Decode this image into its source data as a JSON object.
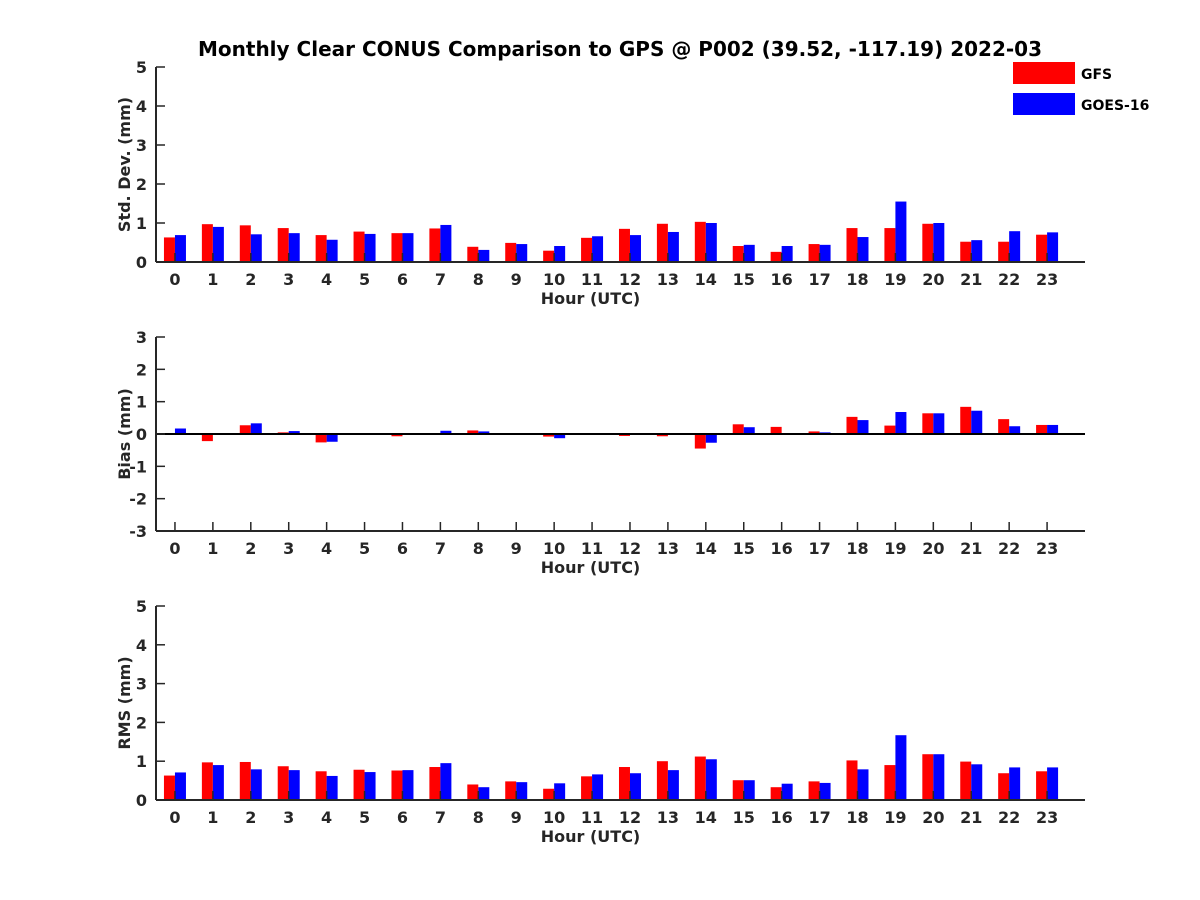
{
  "title": "Monthly Clear CONUS Comparison to GPS @ P002 (39.52, -117.19) 2022-03",
  "legend": {
    "placement": "top-right",
    "entries": [
      {
        "label": "GFS",
        "color": "#ff0000"
      },
      {
        "label": "GOES-16",
        "color": "#0000ff"
      }
    ]
  },
  "chart_data": [
    {
      "type": "bar",
      "xlabel": "Hour (UTC)",
      "ylabel": "Std. Dev. (mm)",
      "ylim": [
        0,
        5
      ],
      "yticks": [
        0,
        1,
        2,
        3,
        4,
        5
      ],
      "categories": [
        "0",
        "1",
        "2",
        "3",
        "4",
        "5",
        "6",
        "7",
        "8",
        "9",
        "10",
        "11",
        "12",
        "13",
        "14",
        "15",
        "16",
        "17",
        "18",
        "19",
        "20",
        "21",
        "22",
        "23"
      ],
      "series": [
        {
          "name": "GFS",
          "color": "#ff0000",
          "values": [
            0.63,
            0.97,
            0.94,
            0.87,
            0.69,
            0.78,
            0.74,
            0.86,
            0.39,
            0.49,
            0.29,
            0.62,
            0.85,
            0.98,
            1.03,
            0.41,
            0.26,
            0.46,
            0.87,
            0.87,
            0.98,
            0.52,
            0.52,
            0.7
          ]
        },
        {
          "name": "GOES-16",
          "color": "#0000ff",
          "values": [
            0.69,
            0.9,
            0.71,
            0.74,
            0.57,
            0.72,
            0.74,
            0.95,
            0.31,
            0.46,
            0.41,
            0.66,
            0.69,
            0.77,
            1.0,
            0.44,
            0.41,
            0.44,
            0.64,
            1.55,
            1.0,
            0.56,
            0.79,
            0.76
          ]
        }
      ]
    },
    {
      "type": "bar",
      "xlabel": "Hour (UTC)",
      "ylabel": "Bias (mm)",
      "ylim": [
        -3,
        3
      ],
      "yticks": [
        -3,
        -2,
        -1,
        0,
        1,
        2,
        3
      ],
      "categories": [
        "0",
        "1",
        "2",
        "3",
        "4",
        "5",
        "6",
        "7",
        "8",
        "9",
        "10",
        "11",
        "12",
        "13",
        "14",
        "15",
        "16",
        "17",
        "18",
        "19",
        "20",
        "21",
        "22",
        "23"
      ],
      "series": [
        {
          "name": "GFS",
          "color": "#ff0000",
          "values": [
            0.0,
            -0.22,
            0.27,
            0.05,
            -0.26,
            0.0,
            -0.07,
            -0.03,
            0.11,
            0.0,
            -0.08,
            0.0,
            -0.06,
            -0.07,
            -0.45,
            0.3,
            0.22,
            0.08,
            0.53,
            0.26,
            0.64,
            0.84,
            0.46,
            0.28
          ]
        },
        {
          "name": "GOES-16",
          "color": "#0000ff",
          "values": [
            0.17,
            0.0,
            0.33,
            0.09,
            -0.24,
            0.0,
            0.0,
            0.1,
            0.08,
            0.0,
            -0.13,
            0.0,
            0.0,
            0.0,
            -0.27,
            0.21,
            0.03,
            0.05,
            0.43,
            0.68,
            0.64,
            0.72,
            0.24,
            0.28
          ]
        }
      ]
    },
    {
      "type": "bar",
      "xlabel": "Hour (UTC)",
      "ylabel": "RMS (mm)",
      "ylim": [
        0,
        5
      ],
      "yticks": [
        0,
        1,
        2,
        3,
        4,
        5
      ],
      "categories": [
        "0",
        "1",
        "2",
        "3",
        "4",
        "5",
        "6",
        "7",
        "8",
        "9",
        "10",
        "11",
        "12",
        "13",
        "14",
        "15",
        "16",
        "17",
        "18",
        "19",
        "20",
        "21",
        "22",
        "23"
      ],
      "series": [
        {
          "name": "GFS",
          "color": "#ff0000",
          "values": [
            0.63,
            0.97,
            0.98,
            0.87,
            0.74,
            0.78,
            0.76,
            0.85,
            0.4,
            0.48,
            0.29,
            0.61,
            0.85,
            1.0,
            1.12,
            0.51,
            0.33,
            0.48,
            1.02,
            0.9,
            1.18,
            0.99,
            0.69,
            0.74
          ]
        },
        {
          "name": "GOES-16",
          "color": "#0000ff",
          "values": [
            0.71,
            0.9,
            0.79,
            0.77,
            0.62,
            0.72,
            0.77,
            0.95,
            0.33,
            0.46,
            0.43,
            0.66,
            0.69,
            0.77,
            1.05,
            0.51,
            0.42,
            0.44,
            0.79,
            1.67,
            1.18,
            0.92,
            0.84,
            0.84
          ]
        }
      ]
    }
  ]
}
